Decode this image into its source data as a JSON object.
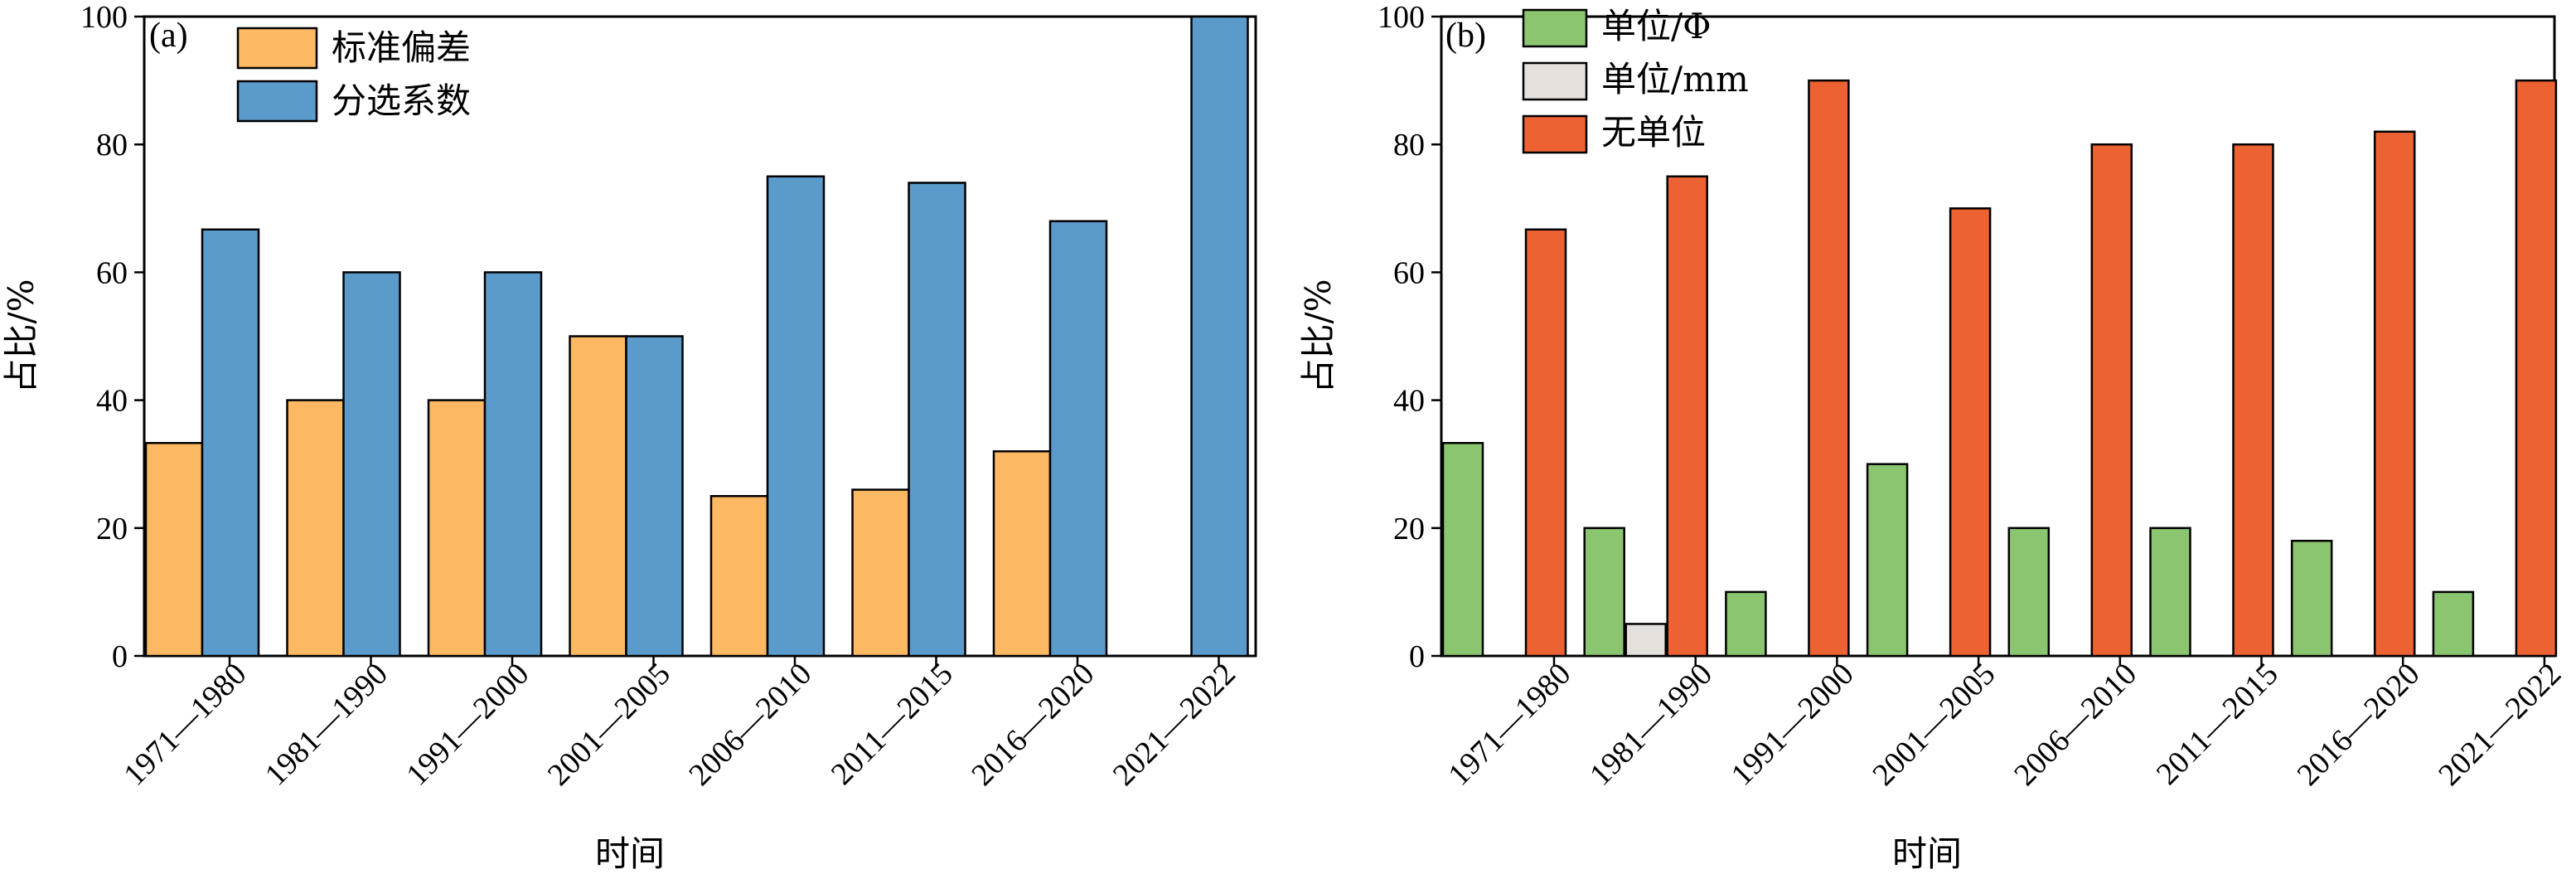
{
  "figure": {
    "xlabel": "时间",
    "ylabel": "占比/%"
  },
  "chart_data": [
    {
      "type": "bar",
      "panel_tag": "(a)",
      "title": "",
      "xlabel": "时间",
      "ylabel": "占比/%",
      "ylim": [
        0,
        100
      ],
      "yticks": [
        0,
        20,
        40,
        60,
        80,
        100
      ],
      "grid": false,
      "legend_position": "top-left",
      "categories": [
        "1971—1980",
        "1981—1990",
        "1991—2000",
        "2001—2005",
        "2006—2010",
        "2011—2015",
        "2016—2020",
        "2021—2022"
      ],
      "series": [
        {
          "name": "标准偏差",
          "color": "#FDB863",
          "values": [
            33.3,
            40,
            40,
            50,
            25,
            26,
            32,
            0
          ]
        },
        {
          "name": "分选系数",
          "color": "#5A9BCB",
          "values": [
            66.7,
            60,
            60,
            50,
            75,
            74,
            68,
            100
          ]
        }
      ]
    },
    {
      "type": "bar",
      "panel_tag": "(b)",
      "title": "",
      "xlabel": "时间",
      "ylabel": "占比/%",
      "ylim": [
        0,
        100
      ],
      "yticks": [
        0,
        20,
        40,
        60,
        80,
        100
      ],
      "grid": false,
      "legend_position": "top-left",
      "categories": [
        "1971—1980",
        "1981—1990",
        "1991—2000",
        "2001—2005",
        "2006—2010",
        "2011—2015",
        "2016—2020",
        "2021—2022"
      ],
      "series": [
        {
          "name": "单位/Φ",
          "color": "#8CC56F",
          "values": [
            33.3,
            20,
            10,
            30,
            20,
            20,
            18,
            10
          ]
        },
        {
          "name": "单位/mm",
          "color": "#E6E0DD",
          "values": [
            0,
            5,
            0,
            0,
            0,
            0,
            0,
            0
          ]
        },
        {
          "name": "无单位",
          "color": "#EC6232",
          "values": [
            66.7,
            75,
            90,
            70,
            80,
            80,
            82,
            90
          ]
        }
      ]
    }
  ]
}
